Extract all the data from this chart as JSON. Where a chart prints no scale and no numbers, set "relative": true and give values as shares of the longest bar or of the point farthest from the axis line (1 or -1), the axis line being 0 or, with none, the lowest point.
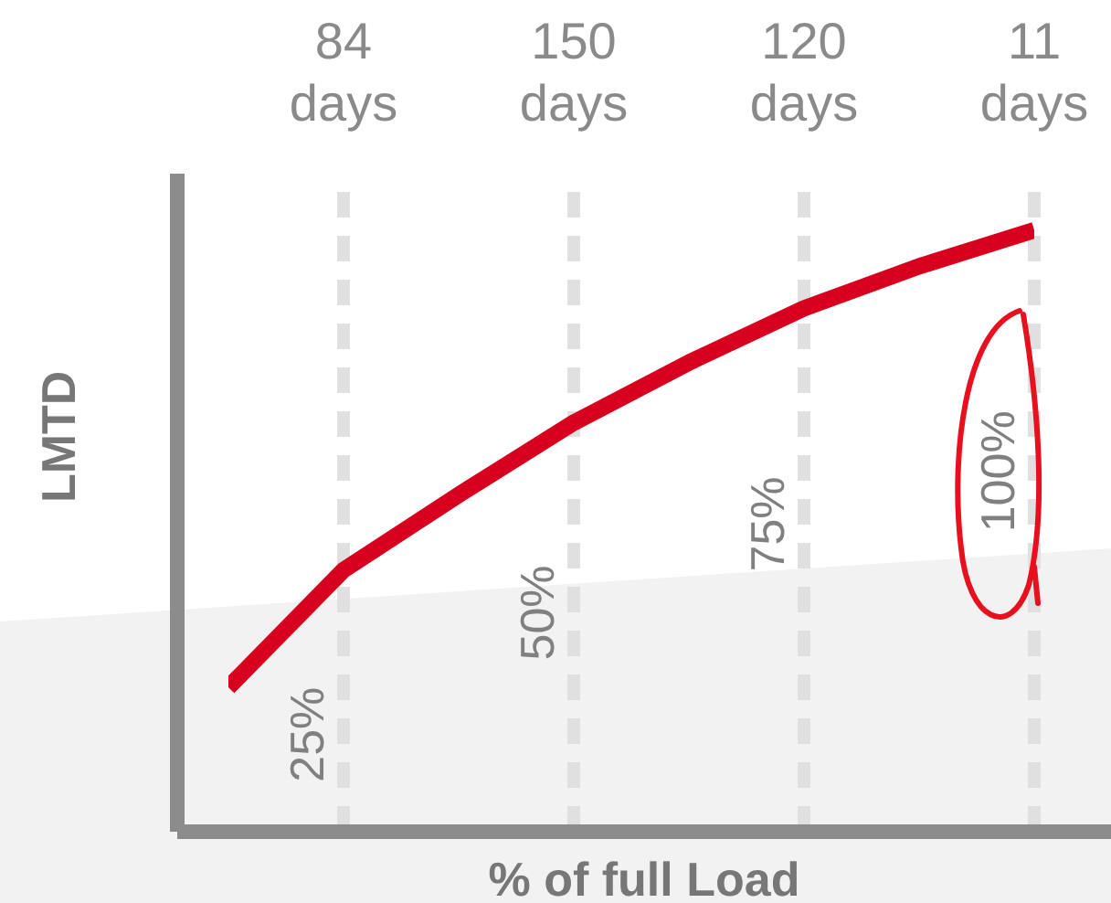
{
  "chart_data": {
    "type": "line",
    "relative": true,
    "xlabel": "% of full Load",
    "ylabel": "LMTD",
    "categories": [
      null,
      "84 days",
      null,
      "150 days",
      null,
      "120 days",
      null,
      "11 days"
    ],
    "grid": false,
    "legend": false,
    "marker": "none",
    "line_style": "solid",
    "series": [
      {
        "color": "#d7001e",
        "values": [
          0.24,
          0.435,
          0.56,
          0.68,
          0.78,
          0.87,
          0.94,
          1
        ]
      }
    ],
    "ref_lines": [
      {
        "axis": "x",
        "value": "84 days",
        "color": "#e0e0e0",
        "line_style": "dashed"
      },
      {
        "axis": "x",
        "value": "150 days",
        "color": "#e0e0e0",
        "line_style": "dashed"
      },
      {
        "axis": "x",
        "value": "120 days",
        "color": "#e0e0e0",
        "line_style": "dashed"
      },
      {
        "axis": "x",
        "value": "11 days",
        "color": "#e0e0e0",
        "line_style": "dashed"
      }
    ],
    "annotations": [
      "25%",
      "50%",
      "75%",
      "100%"
    ]
  }
}
